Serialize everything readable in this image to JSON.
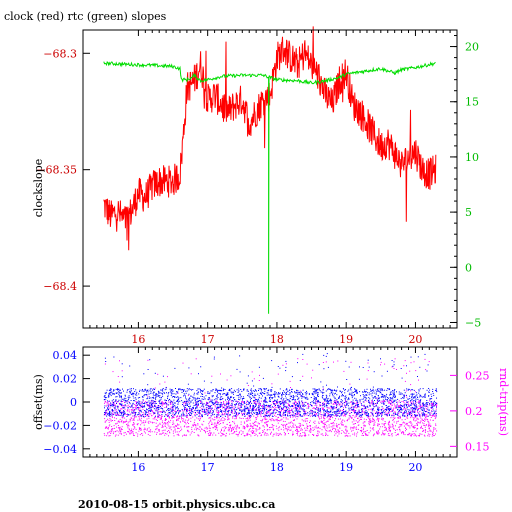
{
  "title": "clock (red) rtc (green) slopes",
  "footer": "2010-08-15  orbit.physics.ubc.ca",
  "colors": {
    "axes": "#000000",
    "left_top": "#cc0000",
    "right_top": "#00bb00",
    "left_bottom": "#0000ff",
    "right_bottom": "#ff00ff",
    "clock": "#ff0000",
    "rtc": "#00dd00",
    "offset": "#0000ff",
    "rndtrip": "#ff00ff"
  },
  "chart_data": [
    {
      "type": "line",
      "title": "clock (red) rtc (green) slopes",
      "ylabel": "clockslope",
      "x_ticks": [
        "16",
        "17",
        "18",
        "19",
        "20"
      ],
      "y_left_ticks": [
        "-68.3",
        "-68.35",
        "-68.4"
      ],
      "y_right_ticks": [
        "20",
        "15",
        "10",
        "5",
        "0",
        "-5"
      ],
      "xlim": [
        15.2,
        20.6
      ],
      "ylim_left": [
        -68.418,
        -68.29
      ],
      "ylim_right": [
        -5.5,
        21.5
      ],
      "series": [
        {
          "name": "clock",
          "axis": "left",
          "x": [
            15.5,
            15.6,
            15.7,
            15.8,
            15.9,
            16.0,
            16.1,
            16.2,
            16.3,
            16.4,
            16.5,
            16.6,
            16.65,
            16.7,
            16.8,
            16.9,
            17.0,
            17.1,
            17.2,
            17.3,
            17.4,
            17.5,
            17.6,
            17.7,
            17.8,
            17.9,
            18.0,
            18.1,
            18.2,
            18.3,
            18.4,
            18.5,
            18.6,
            18.7,
            18.8,
            18.9,
            19.0,
            19.1,
            19.2,
            19.3,
            19.4,
            19.5,
            19.6,
            19.7,
            19.8,
            19.9,
            20.0,
            20.1,
            20.2,
            20.3
          ],
          "y": [
            -68.365,
            -68.37,
            -68.368,
            -68.372,
            -68.368,
            -68.36,
            -68.362,
            -68.357,
            -68.355,
            -68.355,
            -68.355,
            -68.352,
            -68.335,
            -68.315,
            -68.312,
            -68.305,
            -68.32,
            -68.318,
            -68.322,
            -68.325,
            -68.322,
            -68.32,
            -68.33,
            -68.325,
            -68.32,
            -68.318,
            -68.302,
            -68.298,
            -68.302,
            -68.305,
            -68.3,
            -68.305,
            -68.31,
            -68.318,
            -68.322,
            -68.312,
            -68.308,
            -68.322,
            -68.325,
            -68.33,
            -68.335,
            -68.34,
            -68.338,
            -68.343,
            -68.348,
            -68.345,
            -68.342,
            -68.35,
            -68.352,
            -68.35
          ]
        },
        {
          "name": "rtc",
          "axis": "right",
          "x": [
            15.5,
            15.8,
            16.2,
            16.5,
            16.6,
            16.62,
            16.7,
            16.78,
            16.8,
            16.9,
            17.0,
            17.2,
            17.5,
            17.8,
            18.0,
            18.3,
            18.5,
            18.7,
            18.9,
            19.0,
            19.3,
            19.5,
            19.7,
            19.8,
            20.0,
            20.3
          ],
          "y": [
            18.5,
            18.4,
            18.3,
            18.2,
            18.0,
            17.0,
            17.0,
            17.2,
            17.4,
            16.9,
            17.0,
            17.3,
            17.4,
            17.4,
            17.0,
            16.9,
            16.7,
            16.9,
            17.2,
            17.5,
            17.8,
            18.0,
            17.6,
            17.9,
            18.1,
            18.5
          ]
        }
      ]
    },
    {
      "type": "scatter",
      "ylabel": "offset(ms)",
      "ylabel_right": "rnd-trip(ms)",
      "x_ticks": [
        "16",
        "17",
        "18",
        "19",
        "20"
      ],
      "y_left_ticks": [
        "0.04",
        "0.02",
        "0",
        "-0.02",
        "-0.04"
      ],
      "y_right_ticks": [
        "0.25",
        "0.2",
        "0.15"
      ],
      "xlim": [
        15.2,
        20.6
      ],
      "ylim_left": [
        -0.047,
        0.047
      ],
      "ylim_right": [
        0.135,
        0.29
      ],
      "series": [
        {
          "name": "offset",
          "axis": "left",
          "x": [
            15.5,
            20.3
          ],
          "y": [
            0.0,
            0.0
          ],
          "band": [
            -0.012,
            0.012
          ]
        },
        {
          "name": "rnd-trip",
          "axis": "right",
          "x": [
            15.5,
            20.3
          ],
          "y": [
            0.19,
            0.19
          ],
          "band": [
            0.165,
            0.215
          ]
        }
      ]
    }
  ]
}
